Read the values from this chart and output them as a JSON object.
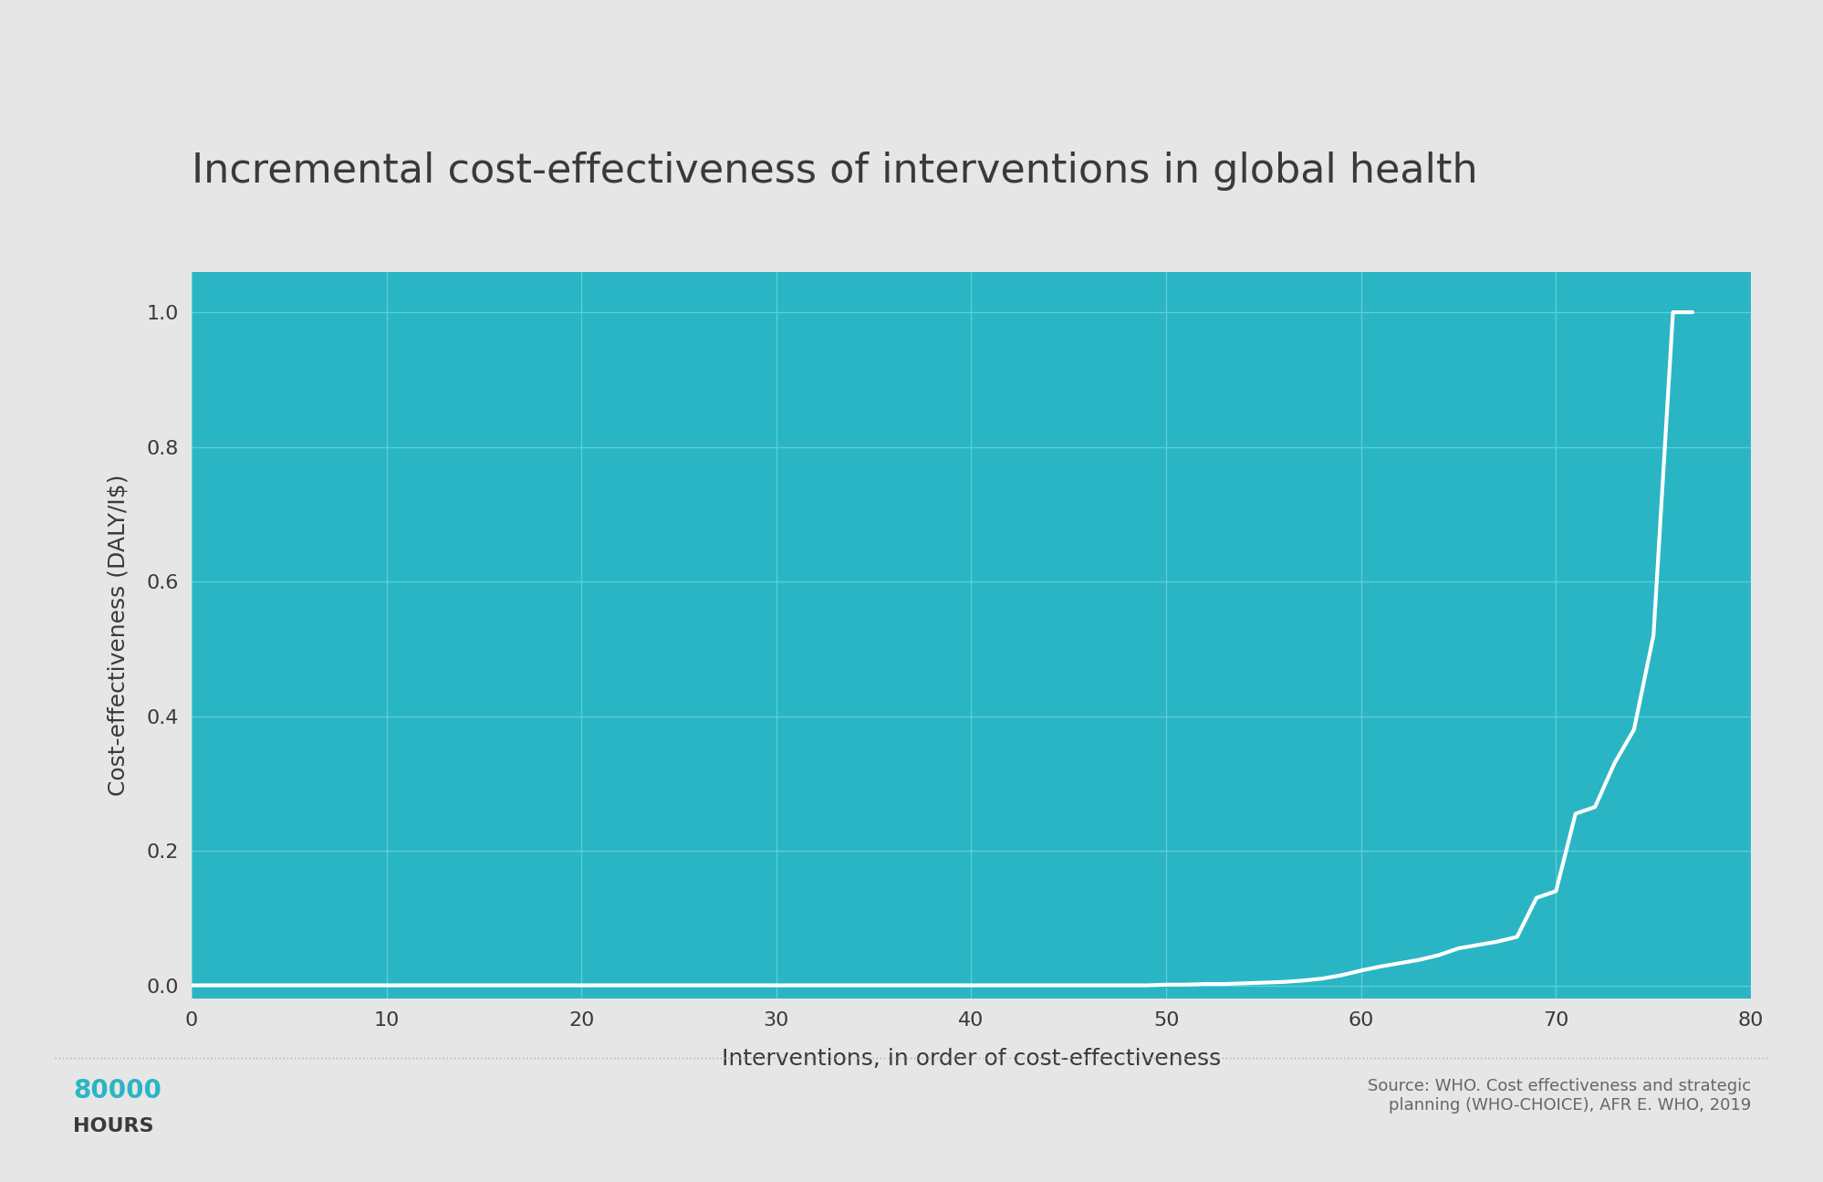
{
  "title": "Incremental cost-effectiveness of interventions in global health",
  "xlabel": "Interventions, in order of cost-effectiveness",
  "ylabel": "Cost-effectiveness (DALY/I$)",
  "background_color": "#e6e6e6",
  "plot_bg_color": "#2ab5c4",
  "grid_color": "#5ecfd8",
  "line_color": "#ffffff",
  "line_width": 3.0,
  "title_color": "#3a3a3a",
  "axis_label_color": "#3a3a3a",
  "tick_color": "#3a3a3a",
  "xlim": [
    0,
    80
  ],
  "ylim": [
    -0.02,
    1.06
  ],
  "xticks": [
    0,
    10,
    20,
    30,
    40,
    50,
    60,
    70,
    80
  ],
  "yticks": [
    0.0,
    0.2,
    0.4,
    0.6,
    0.8,
    1.0
  ],
  "source_text": "Source: WHO. Cost effectiveness and strategic\nplanning (WHO-CHOICE), AFR E. WHO, 2019",
  "brand_text_1": "80000",
  "brand_text_2": "HOURS",
  "brand_color": "#2ab5c4",
  "source_color": "#666666",
  "dotted_line_color": "#aaaaaa",
  "title_fontsize": 32,
  "axis_label_fontsize": 18,
  "tick_fontsize": 16,
  "source_fontsize": 13,
  "brand_fontsize_1": 20,
  "brand_fontsize_2": 16,
  "x_data": [
    0,
    1,
    2,
    3,
    4,
    5,
    6,
    7,
    8,
    9,
    10,
    11,
    12,
    13,
    14,
    15,
    16,
    17,
    18,
    19,
    20,
    21,
    22,
    23,
    24,
    25,
    26,
    27,
    28,
    29,
    30,
    31,
    32,
    33,
    34,
    35,
    36,
    37,
    38,
    39,
    40,
    41,
    42,
    43,
    44,
    45,
    46,
    47,
    48,
    49,
    50,
    51,
    52,
    53,
    54,
    55,
    56,
    57,
    58,
    59,
    60,
    61,
    62,
    63,
    64,
    65,
    66,
    67,
    68,
    69,
    70,
    71,
    72,
    73,
    74,
    75,
    76,
    77
  ],
  "y_data": [
    0.0,
    0.0,
    0.0,
    0.0,
    0.0,
    0.0,
    0.0,
    0.0,
    0.0,
    0.0,
    0.0,
    0.0,
    0.0,
    0.0,
    0.0,
    0.0,
    0.0,
    0.0,
    0.0,
    0.0,
    0.0,
    0.0,
    0.0,
    0.0,
    0.0,
    0.0,
    0.0,
    0.0,
    0.0,
    0.0,
    0.0,
    0.0,
    0.0,
    0.0,
    0.0,
    0.0,
    0.0,
    0.0,
    0.0,
    0.0,
    0.0,
    0.0,
    0.0,
    0.0,
    0.0,
    0.0,
    0.0,
    0.0,
    0.0,
    0.0,
    0.001,
    0.001,
    0.002,
    0.002,
    0.003,
    0.004,
    0.005,
    0.007,
    0.01,
    0.015,
    0.022,
    0.028,
    0.033,
    0.038,
    0.045,
    0.055,
    0.06,
    0.065,
    0.072,
    0.13,
    0.14,
    0.255,
    0.265,
    0.33,
    0.38,
    0.52,
    1.0,
    1.0
  ]
}
